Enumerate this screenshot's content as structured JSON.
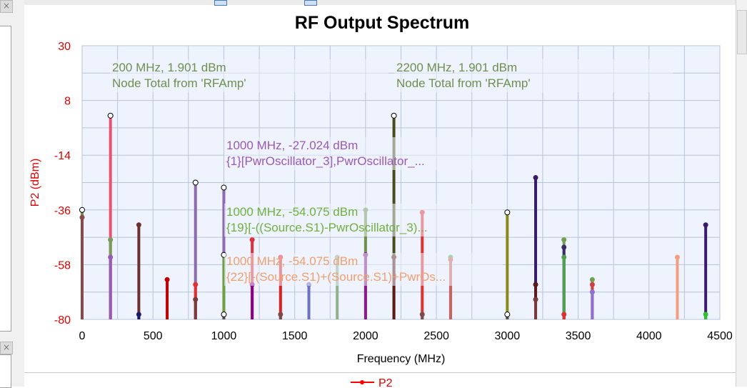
{
  "window": {
    "close_symbol": "×"
  },
  "chart_data": {
    "type": "bar",
    "title": "RF Output Spectrum",
    "xlabel": "Frequency (MHz)",
    "ylabel": "P2 (dBm)",
    "xlim": [
      0,
      4500
    ],
    "ylim": [
      -80,
      30
    ],
    "xticks": [
      "0",
      "500",
      "1000",
      "1500",
      "2000",
      "2500",
      "3000",
      "3500",
      "4000",
      "4500"
    ],
    "yticks": [
      "30",
      "8",
      "-14",
      "-36",
      "-58",
      "-80"
    ],
    "grid": true,
    "legend": {
      "position": "bottom",
      "entries": [
        "P2"
      ]
    },
    "series": [
      {
        "name": "P2",
        "color": "#ff0000",
        "points": [
          {
            "x": 0,
            "y": -36,
            "color": "#6f8f4f",
            "marker": "hollow"
          },
          {
            "x": 0,
            "y": -39,
            "color": "#8b4a4a"
          },
          {
            "x": 200,
            "y": 1.901,
            "color": "#f05070",
            "marker": "hollow"
          },
          {
            "x": 200,
            "y": -48,
            "color": "#7a9a5a"
          },
          {
            "x": 200,
            "y": -55,
            "color": "#9b59b6"
          },
          {
            "x": 400,
            "y": -42,
            "color": "#6b3030"
          },
          {
            "x": 400,
            "y": -78,
            "color": "#1a1a6a"
          },
          {
            "x": 600,
            "y": -64,
            "color": "#c00000"
          },
          {
            "x": 800,
            "y": -25,
            "color": "#8e6ab0",
            "marker": "hollow"
          },
          {
            "x": 800,
            "y": -66,
            "color": "#e03030"
          },
          {
            "x": 800,
            "y": -72,
            "color": "#7a3a3a"
          },
          {
            "x": 1000,
            "y": -27.024,
            "color": "#8e6ab0",
            "marker": "hollow"
          },
          {
            "x": 1000,
            "y": -54.075,
            "color": "#70a040",
            "marker": "hollow"
          },
          {
            "x": 1000,
            "y": -78,
            "color": "#555555",
            "marker": "hollow"
          },
          {
            "x": 1200,
            "y": -48,
            "color": "#e03040"
          },
          {
            "x": 1200,
            "y": -66,
            "color": "#8b008b"
          },
          {
            "x": 1400,
            "y": -55,
            "color": "#e02020"
          },
          {
            "x": 1400,
            "y": -78,
            "color": "#7a4a4a"
          },
          {
            "x": 1600,
            "y": -66,
            "color": "#7070c0"
          },
          {
            "x": 1800,
            "y": -55,
            "color": "#90b090"
          },
          {
            "x": 2000,
            "y": -36,
            "color": "#6f8f4f"
          },
          {
            "x": 2000,
            "y": -54,
            "color": "#8b1a8b"
          },
          {
            "x": 2200,
            "y": 1.901,
            "color": "#4a4a1a",
            "marker": "hollow"
          },
          {
            "x": 2200,
            "y": -55,
            "color": "#5a1a1a"
          },
          {
            "x": 2400,
            "y": -37,
            "color": "#e03030"
          },
          {
            "x": 2400,
            "y": -78,
            "color": "#7a4a4a"
          },
          {
            "x": 2600,
            "y": -55,
            "color": "#50b050"
          },
          {
            "x": 2600,
            "y": -56,
            "color": "#d06060"
          },
          {
            "x": 3000,
            "y": -37,
            "color": "#8a8a1a",
            "marker": "hollow"
          },
          {
            "x": 3000,
            "y": -78,
            "color": "#555555",
            "marker": "hollow"
          },
          {
            "x": 3200,
            "y": -23,
            "color": "#3a1a6a"
          },
          {
            "x": 3200,
            "y": -66,
            "color": "#5a1a1a"
          },
          {
            "x": 3200,
            "y": -72,
            "color": "#7a3a3a"
          },
          {
            "x": 3400,
            "y": -48,
            "color": "#70a050"
          },
          {
            "x": 3400,
            "y": -51,
            "color": "#3a2a6a"
          },
          {
            "x": 3400,
            "y": -55,
            "color": "#50a050"
          },
          {
            "x": 3400,
            "y": -78,
            "color": "#e03030"
          },
          {
            "x": 3600,
            "y": -64,
            "color": "#70a050"
          },
          {
            "x": 3600,
            "y": -66,
            "color": "#d04040"
          },
          {
            "x": 3600,
            "y": -69,
            "color": "#9070d0"
          },
          {
            "x": 4200,
            "y": -55,
            "color": "#f0a080"
          },
          {
            "x": 4400,
            "y": -42,
            "color": "#3a1a6a"
          },
          {
            "x": 4400,
            "y": -78,
            "color": "#30c030"
          }
        ]
      }
    ],
    "annotations": [
      {
        "line1": "200 MHz, 1.901 dBm",
        "line2": "Node Total from 'RFAmp'",
        "color": "#6f8f4f"
      },
      {
        "line1": "2200 MHz, 1.901 dBm",
        "line2": "Node Total from 'RFAmp'",
        "color": "#6f8f4f"
      },
      {
        "line1": "1000 MHz, -27.024 dBm",
        "line2": "{1}[PwrOscillator_3],PwrOscillator_...",
        "color": "#9b59b6"
      },
      {
        "line1": "1000 MHz, -54.075 dBm",
        "line2": "{19}[-((Source.S1)-PwrOscillator_3)...",
        "color": "#70b040"
      },
      {
        "line1": "1000 MHz, -54.075 dBm",
        "line2": "{22}[-(Source.S1)+(Source.S1)+PwrOs...",
        "color": "#f0a070"
      }
    ]
  }
}
